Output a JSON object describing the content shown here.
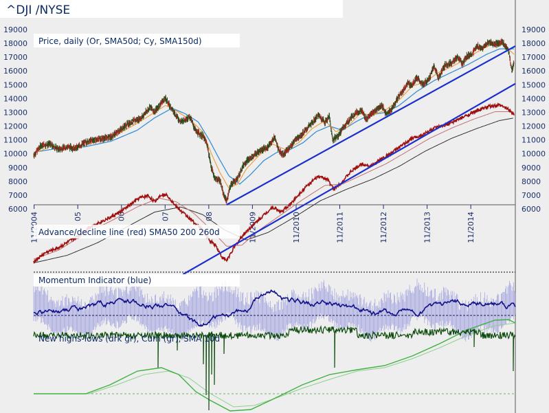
{
  "header": {
    "title": "^DJI /NYSE"
  },
  "chart_data": [
    {
      "type": "line",
      "title": "Price, daily (Or, SMA50d; Cy, SMA150d)",
      "ylim": [
        6000,
        19500
      ],
      "yticks": [
        6000,
        7000,
        8000,
        9000,
        10000,
        11000,
        12000,
        13000,
        14000,
        15000,
        16000,
        17000,
        18000,
        19000
      ],
      "ytick_labels": [
        "6000",
        "7000",
        "8000",
        "9000",
        "10000",
        "11000",
        "12000",
        "13000",
        "14000",
        "15000",
        "16000",
        "17000",
        "18000",
        "19000"
      ],
      "x_ticks": [
        {
          "label": "11/2004",
          "t": 2004.84
        },
        {
          "label": "05",
          "t": 2005.84
        },
        {
          "label": "06",
          "t": 2006.84
        },
        {
          "label": "07",
          "t": 2007.84
        },
        {
          "label": "08",
          "t": 2008.84
        },
        {
          "label": "11/2009",
          "t": 2009.84
        },
        {
          "label": "11/2010",
          "t": 2010.84
        },
        {
          "label": "11/2011",
          "t": 2011.84
        },
        {
          "label": "11/2012",
          "t": 2012.84
        },
        {
          "label": "11/2013",
          "t": 2013.84
        },
        {
          "label": "11/2014",
          "t": 2014.84
        }
      ],
      "x_range": [
        2004.83,
        2015.86
      ],
      "price": [
        [
          2004.83,
          9900
        ],
        [
          2005.0,
          10600
        ],
        [
          2005.2,
          10700
        ],
        [
          2005.4,
          10300
        ],
        [
          2005.6,
          10500
        ],
        [
          2005.8,
          10400
        ],
        [
          2006.0,
          10800
        ],
        [
          2006.2,
          11000
        ],
        [
          2006.4,
          11100
        ],
        [
          2006.6,
          11200
        ],
        [
          2006.8,
          11700
        ],
        [
          2007.0,
          12200
        ],
        [
          2007.15,
          12400
        ],
        [
          2007.3,
          12600
        ],
        [
          2007.5,
          13400
        ],
        [
          2007.6,
          13000
        ],
        [
          2007.75,
          13700
        ],
        [
          2007.85,
          14000
        ],
        [
          2008.0,
          13200
        ],
        [
          2008.2,
          12300
        ],
        [
          2008.4,
          12700
        ],
        [
          2008.55,
          11600
        ],
        [
          2008.7,
          11300
        ],
        [
          2008.8,
          10700
        ],
        [
          2008.9,
          9000
        ],
        [
          2008.98,
          8200
        ],
        [
          2009.1,
          8100
        ],
        [
          2009.18,
          7000
        ],
        [
          2009.25,
          6600
        ],
        [
          2009.35,
          7800
        ],
        [
          2009.5,
          8200
        ],
        [
          2009.65,
          9300
        ],
        [
          2009.8,
          9700
        ],
        [
          2010.0,
          10200
        ],
        [
          2010.2,
          10500
        ],
        [
          2010.35,
          11200
        ],
        [
          2010.45,
          10200
        ],
        [
          2010.55,
          9900
        ],
        [
          2010.7,
          10500
        ],
        [
          2010.85,
          11100
        ],
        [
          2011.0,
          11500
        ],
        [
          2011.2,
          12200
        ],
        [
          2011.35,
          12800
        ],
        [
          2011.5,
          12300
        ],
        [
          2011.6,
          12700
        ],
        [
          2011.68,
          11000
        ],
        [
          2011.8,
          11300
        ],
        [
          2011.9,
          11800
        ],
        [
          2012.0,
          12200
        ],
        [
          2012.2,
          13000
        ],
        [
          2012.35,
          13100
        ],
        [
          2012.45,
          12500
        ],
        [
          2012.6,
          13000
        ],
        [
          2012.8,
          13500
        ],
        [
          2012.9,
          12900
        ],
        [
          2013.0,
          13100
        ],
        [
          2013.2,
          14200
        ],
        [
          2013.4,
          15100
        ],
        [
          2013.5,
          15000
        ],
        [
          2013.6,
          15500
        ],
        [
          2013.75,
          15000
        ],
        [
          2013.9,
          15500
        ],
        [
          2014.0,
          16400
        ],
        [
          2014.1,
          15500
        ],
        [
          2014.25,
          16400
        ],
        [
          2014.4,
          16600
        ],
        [
          2014.55,
          17000
        ],
        [
          2014.65,
          16500
        ],
        [
          2014.75,
          17100
        ],
        [
          2014.85,
          17200
        ],
        [
          2015.0,
          17800
        ],
        [
          2015.1,
          17600
        ],
        [
          2015.25,
          18100
        ],
        [
          2015.4,
          17900
        ],
        [
          2015.55,
          18100
        ],
        [
          2015.7,
          17600
        ],
        [
          2015.78,
          16000
        ],
        [
          2015.83,
          16600
        ]
      ],
      "sma50": [
        [
          2004.83,
          10000
        ],
        [
          2005.2,
          10500
        ],
        [
          2005.6,
          10400
        ],
        [
          2006.0,
          10600
        ],
        [
          2006.4,
          11000
        ],
        [
          2006.8,
          11500
        ],
        [
          2007.2,
          12200
        ],
        [
          2007.6,
          13000
        ],
        [
          2007.85,
          13500
        ],
        [
          2008.1,
          13100
        ],
        [
          2008.4,
          12500
        ],
        [
          2008.7,
          11600
        ],
        [
          2008.9,
          10000
        ],
        [
          2009.1,
          8600
        ],
        [
          2009.3,
          7500
        ],
        [
          2009.5,
          7800
        ],
        [
          2009.7,
          8900
        ],
        [
          2010.0,
          9900
        ],
        [
          2010.3,
          10700
        ],
        [
          2010.6,
          10300
        ],
        [
          2010.9,
          10800
        ],
        [
          2011.2,
          11800
        ],
        [
          2011.5,
          12400
        ],
        [
          2011.75,
          11600
        ],
        [
          2012.0,
          11900
        ],
        [
          2012.3,
          12900
        ],
        [
          2012.6,
          12800
        ],
        [
          2012.9,
          13200
        ],
        [
          2013.2,
          13900
        ],
        [
          2013.5,
          14900
        ],
        [
          2013.8,
          15200
        ],
        [
          2014.1,
          15900
        ],
        [
          2014.4,
          16300
        ],
        [
          2014.7,
          16800
        ],
        [
          2015.0,
          17400
        ],
        [
          2015.3,
          17900
        ],
        [
          2015.6,
          17900
        ],
        [
          2015.83,
          17200
        ]
      ],
      "sma150": [
        [
          2004.83,
          10100
        ],
        [
          2005.4,
          10400
        ],
        [
          2006.0,
          10500
        ],
        [
          2006.6,
          10900
        ],
        [
          2007.2,
          11700
        ],
        [
          2007.6,
          12600
        ],
        [
          2008.0,
          13300
        ],
        [
          2008.3,
          12900
        ],
        [
          2008.6,
          12300
        ],
        [
          2008.85,
          11000
        ],
        [
          2009.05,
          9800
        ],
        [
          2009.3,
          8400
        ],
        [
          2009.55,
          7800
        ],
        [
          2009.8,
          8500
        ],
        [
          2010.1,
          9500
        ],
        [
          2010.4,
          10100
        ],
        [
          2010.7,
          10300
        ],
        [
          2011.0,
          10800
        ],
        [
          2011.3,
          11600
        ],
        [
          2011.6,
          12000
        ],
        [
          2011.9,
          11700
        ],
        [
          2012.2,
          12300
        ],
        [
          2012.5,
          12800
        ],
        [
          2012.9,
          13000
        ],
        [
          2013.2,
          13500
        ],
        [
          2013.6,
          14500
        ],
        [
          2014.0,
          15300
        ],
        [
          2014.4,
          15900
        ],
        [
          2014.8,
          16500
        ],
        [
          2015.2,
          17200
        ],
        [
          2015.5,
          17600
        ],
        [
          2015.83,
          17600
        ]
      ],
      "trendlines": [
        {
          "from": [
            2009.25,
            6300
          ],
          "to": [
            2015.86,
            17800
          ]
        }
      ]
    },
    {
      "type": "line",
      "title": "Advance/decline line (red) SMA50 200 260d",
      "ad": [
        [
          2004.83,
          0.05
        ],
        [
          2005.1,
          0.12
        ],
        [
          2005.4,
          0.16
        ],
        [
          2005.6,
          0.2
        ],
        [
          2005.85,
          0.25
        ],
        [
          2006.1,
          0.32
        ],
        [
          2006.35,
          0.36
        ],
        [
          2006.6,
          0.4
        ],
        [
          2006.85,
          0.45
        ],
        [
          2007.05,
          0.5
        ],
        [
          2007.25,
          0.55
        ],
        [
          2007.45,
          0.57
        ],
        [
          2007.6,
          0.52
        ],
        [
          2007.75,
          0.58
        ],
        [
          2007.9,
          0.57
        ],
        [
          2008.1,
          0.48
        ],
        [
          2008.3,
          0.42
        ],
        [
          2008.5,
          0.36
        ],
        [
          2008.7,
          0.3
        ],
        [
          2008.85,
          0.22
        ],
        [
          2009.0,
          0.18
        ],
        [
          2009.15,
          0.08
        ],
        [
          2009.25,
          0.06
        ],
        [
          2009.4,
          0.15
        ],
        [
          2009.6,
          0.25
        ],
        [
          2009.8,
          0.32
        ],
        [
          2010.05,
          0.4
        ],
        [
          2010.3,
          0.48
        ],
        [
          2010.5,
          0.44
        ],
        [
          2010.7,
          0.5
        ],
        [
          2010.9,
          0.58
        ],
        [
          2011.1,
          0.65
        ],
        [
          2011.35,
          0.72
        ],
        [
          2011.55,
          0.7
        ],
        [
          2011.7,
          0.62
        ],
        [
          2011.9,
          0.68
        ],
        [
          2012.1,
          0.76
        ],
        [
          2012.35,
          0.82
        ],
        [
          2012.55,
          0.8
        ],
        [
          2012.8,
          0.86
        ],
        [
          2013.0,
          0.9
        ],
        [
          2013.25,
          0.96
        ],
        [
          2013.5,
          1.02
        ],
        [
          2013.75,
          1.05
        ],
        [
          2014.0,
          1.1
        ],
        [
          2014.25,
          1.12
        ],
        [
          2014.5,
          1.16
        ],
        [
          2014.75,
          1.2
        ],
        [
          2015.0,
          1.24
        ],
        [
          2015.25,
          1.27
        ],
        [
          2015.5,
          1.28
        ],
        [
          2015.7,
          1.25
        ],
        [
          2015.83,
          1.21
        ]
      ],
      "ad_sma": [
        [
          2004.83,
          0.07
        ],
        [
          2005.4,
          0.14
        ],
        [
          2006.0,
          0.27
        ],
        [
          2006.6,
          0.37
        ],
        [
          2007.2,
          0.48
        ],
        [
          2007.7,
          0.55
        ],
        [
          2008.1,
          0.52
        ],
        [
          2008.5,
          0.43
        ],
        [
          2008.9,
          0.3
        ],
        [
          2009.25,
          0.17
        ],
        [
          2009.6,
          0.18
        ],
        [
          2010.0,
          0.3
        ],
        [
          2010.5,
          0.42
        ],
        [
          2011.0,
          0.54
        ],
        [
          2011.5,
          0.65
        ],
        [
          2011.9,
          0.66
        ],
        [
          2012.4,
          0.74
        ],
        [
          2012.9,
          0.82
        ],
        [
          2013.4,
          0.92
        ],
        [
          2013.9,
          1.02
        ],
        [
          2014.4,
          1.1
        ],
        [
          2014.9,
          1.17
        ],
        [
          2015.4,
          1.23
        ],
        [
          2015.83,
          1.23
        ]
      ],
      "ad_sma_slow": [
        [
          2004.83,
          0.04
        ],
        [
          2005.6,
          0.1
        ],
        [
          2006.3,
          0.2
        ],
        [
          2007.0,
          0.33
        ],
        [
          2007.6,
          0.44
        ],
        [
          2008.2,
          0.48
        ],
        [
          2008.7,
          0.42
        ],
        [
          2009.2,
          0.3
        ],
        [
          2009.7,
          0.22
        ],
        [
          2010.2,
          0.28
        ],
        [
          2010.8,
          0.4
        ],
        [
          2011.4,
          0.53
        ],
        [
          2012.0,
          0.62
        ],
        [
          2012.6,
          0.7
        ],
        [
          2013.2,
          0.8
        ],
        [
          2013.8,
          0.92
        ],
        [
          2014.4,
          1.02
        ],
        [
          2015.0,
          1.1
        ],
        [
          2015.5,
          1.16
        ],
        [
          2015.83,
          1.18
        ]
      ],
      "trendlines": [
        {
          "from": [
            2008.25,
            -0.05
          ],
          "to": [
            2015.86,
            1.45
          ]
        }
      ]
    },
    {
      "type": "line",
      "title": "Momentum Indicator (blue)"
    },
    {
      "type": "line",
      "title": "New highs-lows (drk gr), Cum (gr), SMA 10d"
    }
  ]
}
